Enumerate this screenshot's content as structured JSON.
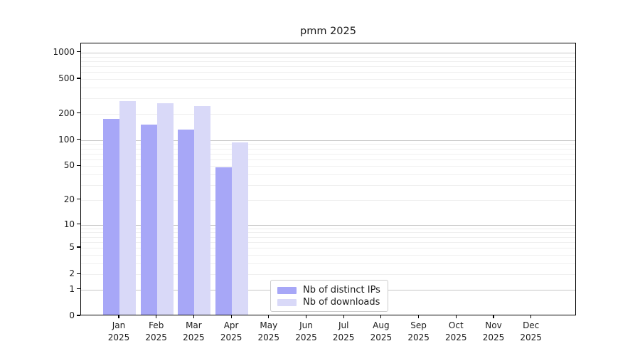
{
  "chart_data": {
    "type": "bar",
    "title": "pmm 2025",
    "xlabel": "",
    "ylabel": "",
    "x_months": [
      "Jan",
      "Feb",
      "Mar",
      "Apr",
      "May",
      "Jun",
      "Jul",
      "Aug",
      "Sep",
      "Oct",
      "Nov",
      "Dec"
    ],
    "x_year": "2025",
    "series": [
      {
        "name": "Nb of distinct IPs",
        "color": "#a7a7f7",
        "values": [
          170,
          145,
          127,
          47,
          0,
          0,
          0,
          0,
          0,
          0,
          0,
          0
        ]
      },
      {
        "name": "Nb of downloads",
        "color": "#d9d9f8",
        "values": [
          270,
          255,
          237,
          90,
          0,
          0,
          0,
          0,
          0,
          0,
          0,
          0
        ]
      }
    ],
    "yscale": "log1p",
    "ylim": [
      0,
      1273
    ],
    "ytick_values": [
      0,
      1,
      2,
      5,
      10,
      20,
      50,
      100,
      200,
      500,
      1000
    ],
    "grid": "on",
    "legend_position": "lower-center-inside"
  },
  "colors": {
    "background": "#ffffff",
    "grid_major": "#c6c6c6",
    "grid_minor": "#efefef",
    "axis": "#000000",
    "text": "#1a1a1a",
    "legend_border": "#cccccc",
    "legend_bg": "#ffffff"
  }
}
